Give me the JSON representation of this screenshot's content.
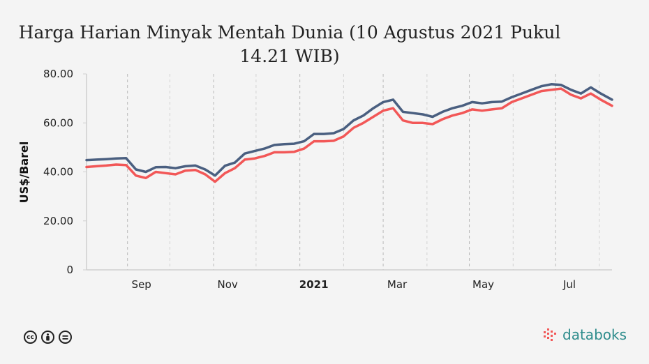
{
  "chart_data": {
    "type": "line",
    "title": "Harga Harian Minyak Mentah Dunia (10 Agustus 2021 Pukul 14.21 WIB)",
    "ylabel": "US$/Barel",
    "xlabel": "",
    "ylim": [
      0,
      80
    ],
    "yticks": [
      "0",
      "20.00",
      "40.00",
      "60.00",
      "80.00"
    ],
    "xticks": [
      {
        "label": "Sep",
        "date": "2020-09-01",
        "bold": false
      },
      {
        "label": "Nov",
        "date": "2020-11-01",
        "bold": false
      },
      {
        "label": "2021",
        "date": "2021-01-01",
        "bold": true
      },
      {
        "label": "Mar",
        "date": "2021-03-01",
        "bold": false
      },
      {
        "label": "May",
        "date": "2021-05-01",
        "bold": false
      },
      {
        "label": "Jul",
        "date": "2021-07-01",
        "bold": false
      }
    ],
    "xrange": [
      "2020-08-03",
      "2021-08-10"
    ],
    "grid": "vertical-dashed",
    "series": [
      {
        "color": "#4a5f80",
        "points": [
          [
            "2020-08-03",
            44.8
          ],
          [
            "2020-08-10",
            45.0
          ],
          [
            "2020-08-17",
            45.2
          ],
          [
            "2020-08-24",
            45.5
          ],
          [
            "2020-08-31",
            45.6
          ],
          [
            "2020-09-07",
            41.0
          ],
          [
            "2020-09-14",
            40.0
          ],
          [
            "2020-09-21",
            41.9
          ],
          [
            "2020-09-28",
            42.0
          ],
          [
            "2020-10-05",
            41.5
          ],
          [
            "2020-10-12",
            42.3
          ],
          [
            "2020-10-19",
            42.6
          ],
          [
            "2020-10-26",
            41.0
          ],
          [
            "2020-11-02",
            38.5
          ],
          [
            "2020-11-09",
            42.5
          ],
          [
            "2020-11-16",
            43.8
          ],
          [
            "2020-11-23",
            47.5
          ],
          [
            "2020-11-30",
            48.5
          ],
          [
            "2020-12-07",
            49.5
          ],
          [
            "2020-12-14",
            51.0
          ],
          [
            "2020-12-21",
            51.3
          ],
          [
            "2020-12-28",
            51.5
          ],
          [
            "2021-01-04",
            52.5
          ],
          [
            "2021-01-11",
            55.5
          ],
          [
            "2021-01-18",
            55.5
          ],
          [
            "2021-01-25",
            55.8
          ],
          [
            "2021-02-01",
            57.5
          ],
          [
            "2021-02-08",
            61.0
          ],
          [
            "2021-02-15",
            63.0
          ],
          [
            "2021-02-22",
            66.0
          ],
          [
            "2021-03-01",
            68.5
          ],
          [
            "2021-03-08",
            69.5
          ],
          [
            "2021-03-15",
            64.5
          ],
          [
            "2021-03-22",
            64.0
          ],
          [
            "2021-03-29",
            63.5
          ],
          [
            "2021-04-05",
            62.5
          ],
          [
            "2021-04-12",
            64.5
          ],
          [
            "2021-04-19",
            66.0
          ],
          [
            "2021-04-26",
            67.0
          ],
          [
            "2021-05-03",
            68.5
          ],
          [
            "2021-05-10",
            68.0
          ],
          [
            "2021-05-17",
            68.5
          ],
          [
            "2021-05-24",
            68.7
          ],
          [
            "2021-05-31",
            70.5
          ],
          [
            "2021-06-07",
            72.0
          ],
          [
            "2021-06-14",
            73.5
          ],
          [
            "2021-06-21",
            75.0
          ],
          [
            "2021-06-28",
            75.8
          ],
          [
            "2021-07-05",
            75.5
          ],
          [
            "2021-07-12",
            73.5
          ],
          [
            "2021-07-19",
            72.0
          ],
          [
            "2021-07-26",
            74.5
          ],
          [
            "2021-08-02",
            72.0
          ],
          [
            "2021-08-10",
            69.5
          ]
        ]
      },
      {
        "color": "#f25757",
        "points": [
          [
            "2020-08-03",
            42.0
          ],
          [
            "2020-08-10",
            42.3
          ],
          [
            "2020-08-17",
            42.6
          ],
          [
            "2020-08-24",
            43.0
          ],
          [
            "2020-08-31",
            42.8
          ],
          [
            "2020-09-07",
            38.5
          ],
          [
            "2020-09-14",
            37.5
          ],
          [
            "2020-09-21",
            40.0
          ],
          [
            "2020-09-28",
            39.5
          ],
          [
            "2020-10-05",
            39.0
          ],
          [
            "2020-10-12",
            40.5
          ],
          [
            "2020-10-19",
            40.8
          ],
          [
            "2020-10-26",
            39.0
          ],
          [
            "2020-11-02",
            36.0
          ],
          [
            "2020-11-09",
            39.5
          ],
          [
            "2020-11-16",
            41.5
          ],
          [
            "2020-11-23",
            45.0
          ],
          [
            "2020-11-30",
            45.5
          ],
          [
            "2020-12-07",
            46.5
          ],
          [
            "2020-12-14",
            48.0
          ],
          [
            "2020-12-21",
            48.0
          ],
          [
            "2020-12-28",
            48.2
          ],
          [
            "2021-01-04",
            49.5
          ],
          [
            "2021-01-11",
            52.5
          ],
          [
            "2021-01-18",
            52.5
          ],
          [
            "2021-01-25",
            52.7
          ],
          [
            "2021-02-01",
            54.5
          ],
          [
            "2021-02-08",
            58.0
          ],
          [
            "2021-02-15",
            60.0
          ],
          [
            "2021-02-22",
            62.5
          ],
          [
            "2021-03-01",
            65.0
          ],
          [
            "2021-03-08",
            66.0
          ],
          [
            "2021-03-15",
            61.0
          ],
          [
            "2021-03-22",
            60.0
          ],
          [
            "2021-03-29",
            60.0
          ],
          [
            "2021-04-05",
            59.5
          ],
          [
            "2021-04-12",
            61.5
          ],
          [
            "2021-04-19",
            63.0
          ],
          [
            "2021-04-26",
            64.0
          ],
          [
            "2021-05-03",
            65.5
          ],
          [
            "2021-05-10",
            65.0
          ],
          [
            "2021-05-17",
            65.5
          ],
          [
            "2021-05-24",
            66.0
          ],
          [
            "2021-05-31",
            68.5
          ],
          [
            "2021-06-07",
            70.0
          ],
          [
            "2021-06-14",
            71.5
          ],
          [
            "2021-06-21",
            73.0
          ],
          [
            "2021-06-28",
            73.5
          ],
          [
            "2021-07-05",
            74.0
          ],
          [
            "2021-07-12",
            71.5
          ],
          [
            "2021-07-19",
            70.0
          ],
          [
            "2021-07-26",
            72.0
          ],
          [
            "2021-08-02",
            69.5
          ],
          [
            "2021-08-10",
            67.0
          ]
        ]
      }
    ]
  },
  "footer": {
    "brand": "databoks",
    "license_icons": [
      "cc-icon",
      "by-icon",
      "nd-icon"
    ],
    "brand_color": "#2d8c8c"
  }
}
